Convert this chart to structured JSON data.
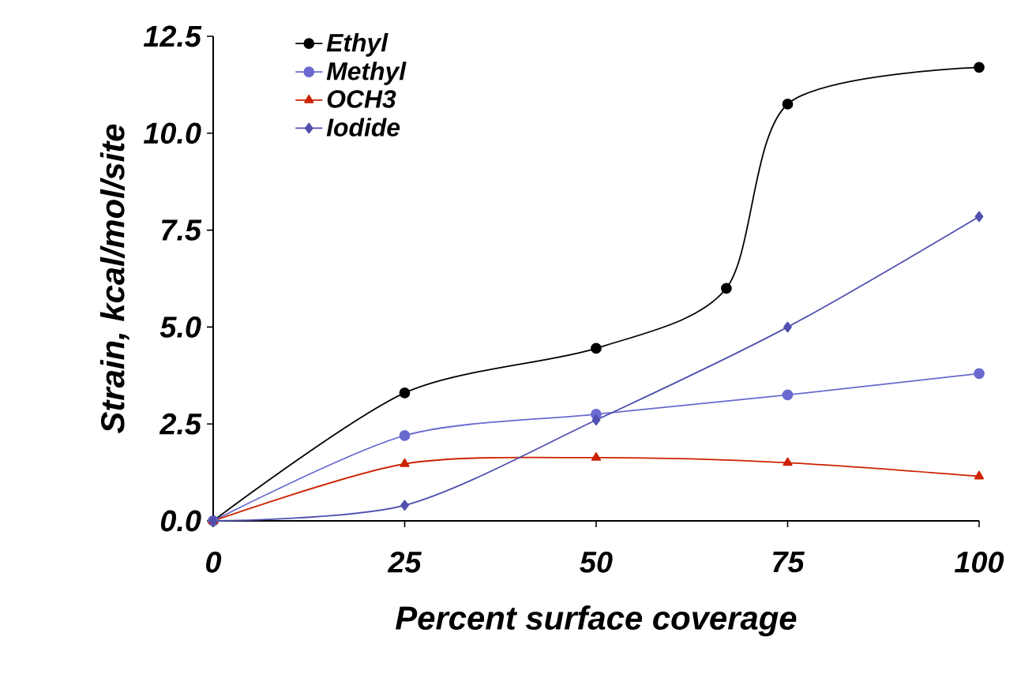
{
  "chart_data": {
    "type": "line",
    "xlabel": "Percent surface coverage",
    "ylabel": "Strain, kcal/mol/site",
    "x": [
      0,
      25,
      50,
      75,
      100
    ],
    "series": [
      {
        "name": "Ethyl",
        "color": "#000000",
        "marker": "circle",
        "x": [
          0,
          25,
          50,
          67,
          75,
          100
        ],
        "values": [
          0.0,
          3.3,
          4.45,
          6.0,
          10.75,
          11.7
        ]
      },
      {
        "name": "Methyl",
        "color": "#6a6ad0",
        "marker": "circle",
        "values": [
          0.0,
          2.2,
          2.75,
          3.25,
          3.8
        ]
      },
      {
        "name": "OCH3",
        "color": "#cc2200",
        "marker": "triangle",
        "values": [
          0.0,
          1.47,
          1.63,
          1.5,
          1.15
        ]
      },
      {
        "name": "Iodide",
        "color": "#5050b0",
        "marker": "diamond",
        "values": [
          0.0,
          0.4,
          2.6,
          5.0,
          7.85
        ]
      }
    ],
    "xlim": [
      0,
      100
    ],
    "ylim": [
      0,
      12.5
    ],
    "xticks": [
      0,
      25,
      50,
      75,
      100
    ],
    "yticks": [
      {
        "value": 0,
        "label": "0.0"
      },
      {
        "value": 2.5,
        "label": "2.5"
      },
      {
        "value": 5,
        "label": "5.0"
      },
      {
        "value": 7.5,
        "label": "7.5"
      },
      {
        "value": 10,
        "label": "10.0"
      },
      {
        "value": 12.5,
        "label": "12.5"
      }
    ],
    "legend": "top left",
    "grid": false,
    "line_style": "solid"
  }
}
